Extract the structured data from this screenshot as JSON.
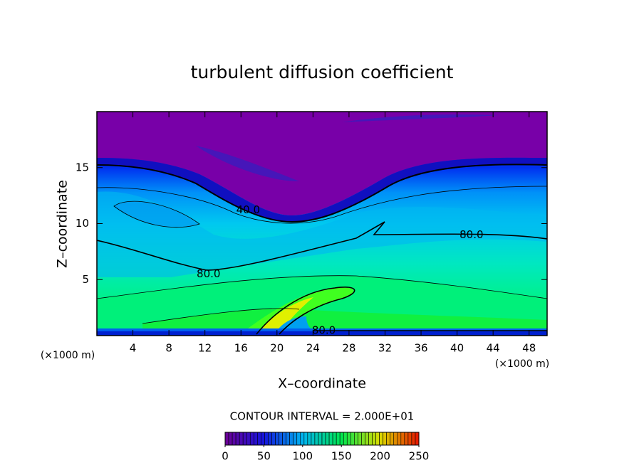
{
  "chart_data": {
    "type": "contour",
    "title": "turbulent diffusion coefficient",
    "x_label": "X–coordinate",
    "y_label": "Z–coordinate",
    "x_unit_left": "(×1000 m)",
    "x_unit_right": "(×1000 m)",
    "xlim": [
      0,
      50
    ],
    "ylim": [
      0,
      20
    ],
    "xticks": [
      4,
      8,
      12,
      16,
      20,
      24,
      28,
      32,
      36,
      40,
      44,
      48
    ],
    "yticks": [
      5,
      10,
      15
    ],
    "contour_labels": [
      {
        "value": 40,
        "label": "40.0",
        "x": 16.8,
        "y": 11.2
      },
      {
        "value": 80,
        "label": "80.0",
        "x": 41.6,
        "y": 9.0
      },
      {
        "value": 80,
        "label": "80.0",
        "x": 12.4,
        "y": 5.5
      },
      {
        "value": 80,
        "label": "80.0",
        "x": 25.2,
        "y": 0.45
      }
    ],
    "contour_interval": "CONTOUR INTERVAL = 2.000E+01",
    "colorbar": {
      "lim": [
        0,
        250
      ],
      "ticks": [
        0,
        50,
        100,
        150,
        200,
        250
      ]
    }
  }
}
